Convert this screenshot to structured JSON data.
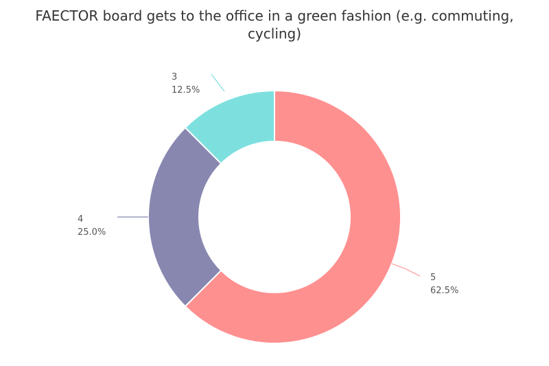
{
  "chart_data": {
    "type": "pie",
    "title": "FAECTOR board gets to the office in a green fashion (e.g. commuting, cycling)",
    "donut": true,
    "slices": [
      {
        "label": "5",
        "value": 62.5,
        "percent_label": "62.5%",
        "color": "#ff9090"
      },
      {
        "label": "4",
        "value": 25.0,
        "percent_label": "25.0%",
        "color": "#8787b0"
      },
      {
        "label": "3",
        "value": 12.5,
        "percent_label": "12.5%",
        "color": "#7de0df"
      }
    ],
    "legend": "none",
    "grid": false
  }
}
